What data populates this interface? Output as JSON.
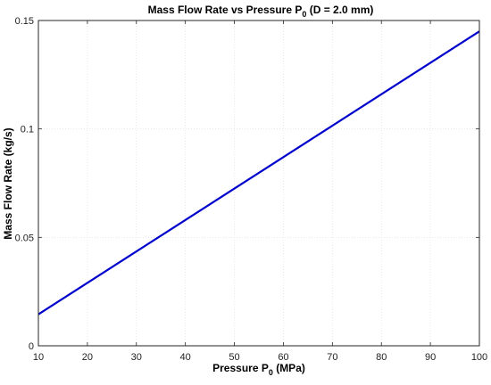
{
  "chart_data": {
    "type": "line",
    "title_main": "Mass Flow Rate vs Pressure P",
    "title_sub": "0",
    "title_rest": " (D = 2.0 mm)",
    "xlabel_main": "Pressure P",
    "xlabel_sub": "0",
    "xlabel_rest": " (MPa)",
    "ylabel": "Mass Flow Rate (kg/s)",
    "xlim": [
      10,
      100
    ],
    "ylim": [
      0,
      0.15
    ],
    "xticks": [
      10,
      20,
      30,
      40,
      50,
      60,
      70,
      80,
      90,
      100
    ],
    "xtick_labels": [
      "10",
      "20",
      "30",
      "40",
      "50",
      "60",
      "70",
      "80",
      "90",
      "100"
    ],
    "yticks": [
      0,
      0.05,
      0.1,
      0.15
    ],
    "ytick_labels": [
      "0",
      "0.05",
      "0.1",
      "0.15"
    ],
    "grid": true,
    "series": [
      {
        "color": "#0000cc",
        "x": [
          10,
          100
        ],
        "y": [
          0.0145,
          0.145
        ]
      }
    ]
  }
}
